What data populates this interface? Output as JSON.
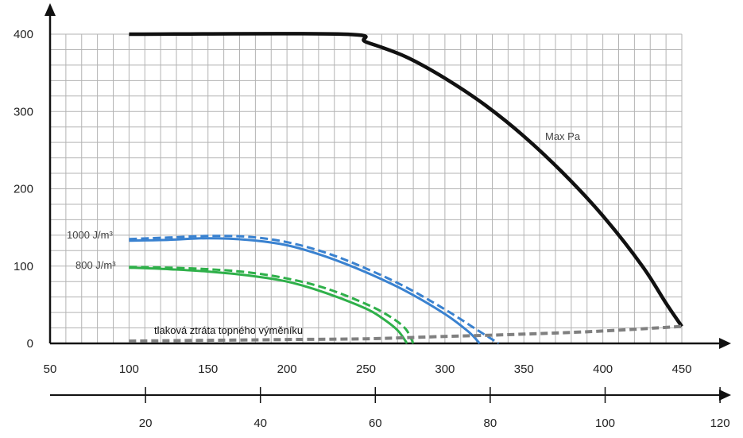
{
  "chart_data": {
    "type": "line",
    "x_axis": {
      "range": [
        50,
        450
      ],
      "ticks": [
        50,
        100,
        150,
        200,
        250,
        300,
        350,
        400,
        450
      ]
    },
    "x_axis_secondary": {
      "range": [
        0,
        125
      ],
      "ticks": [
        20,
        40,
        60,
        80,
        100,
        120
      ]
    },
    "y_axis": {
      "range": [
        0,
        400
      ],
      "ticks": [
        0,
        100,
        200,
        300,
        400
      ]
    },
    "grid": true,
    "series": [
      {
        "name": "Max Pa",
        "color": "#111111",
        "style": "solid",
        "points": [
          [
            100,
            400
          ],
          [
            236,
            400
          ],
          [
            250,
            390
          ],
          [
            275,
            371
          ],
          [
            300,
            343
          ],
          [
            325,
            309
          ],
          [
            350,
            268
          ],
          [
            375,
            220
          ],
          [
            400,
            165
          ],
          [
            425,
            100
          ],
          [
            440,
            52
          ],
          [
            450,
            22
          ]
        ]
      },
      {
        "name": "1000 J/m³",
        "color": "#3a82d0",
        "style": "solid",
        "points": [
          [
            100,
            133
          ],
          [
            125,
            134
          ],
          [
            150,
            136
          ],
          [
            175,
            134
          ],
          [
            200,
            127
          ],
          [
            225,
            112
          ],
          [
            250,
            92
          ],
          [
            275,
            68
          ],
          [
            300,
            38
          ],
          [
            315,
            15
          ],
          [
            322,
            0
          ]
        ]
      },
      {
        "color": "#3a82d0",
        "style": "dashed",
        "points": [
          [
            100,
            135
          ],
          [
            125,
            137
          ],
          [
            150,
            139
          ],
          [
            175,
            138
          ],
          [
            200,
            131
          ],
          [
            225,
            117
          ],
          [
            250,
            97
          ],
          [
            275,
            73
          ],
          [
            300,
            44
          ],
          [
            320,
            18
          ],
          [
            334,
            0
          ]
        ]
      },
      {
        "name": "800 J/m³",
        "color": "#2fb04a",
        "style": "solid",
        "points": [
          [
            100,
            98
          ],
          [
            125,
            96
          ],
          [
            150,
            93
          ],
          [
            175,
            88
          ],
          [
            200,
            80
          ],
          [
            225,
            65
          ],
          [
            250,
            45
          ],
          [
            260,
            33
          ],
          [
            270,
            17
          ],
          [
            276,
            0
          ]
        ]
      },
      {
        "color": "#2fb04a",
        "style": "dashed",
        "points": [
          [
            100,
            99
          ],
          [
            125,
            98
          ],
          [
            150,
            96
          ],
          [
            175,
            92
          ],
          [
            200,
            84
          ],
          [
            225,
            71
          ],
          [
            250,
            51
          ],
          [
            265,
            35
          ],
          [
            275,
            19
          ],
          [
            280,
            0
          ]
        ]
      },
      {
        "name": "tlaková ztráta topného výměníku",
        "color": "#808080",
        "style": "dashed",
        "points": [
          [
            100,
            3
          ],
          [
            150,
            4
          ],
          [
            200,
            5
          ],
          [
            250,
            6
          ],
          [
            300,
            9
          ],
          [
            350,
            12
          ],
          [
            400,
            16
          ],
          [
            450,
            22
          ]
        ]
      }
    ],
    "annotations": {
      "max_pa": "Max Pa",
      "j1000": "1000 J/m³",
      "j800": "800 J/m³",
      "loss": "tlaková ztráta topného výměníku"
    }
  }
}
